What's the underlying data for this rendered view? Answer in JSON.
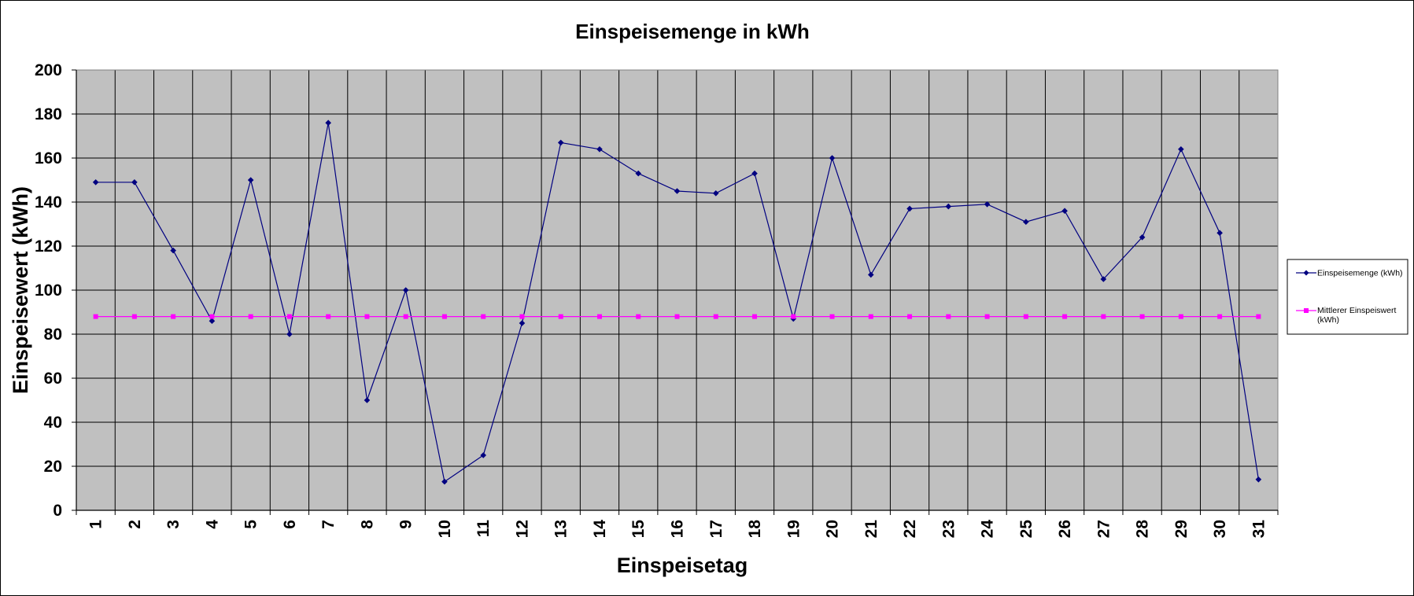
{
  "chart_data": {
    "type": "line",
    "title": "Einspeisemenge in kWh",
    "xlabel": "Einspeisetag",
    "ylabel": "Einspeisewert  (kWh)",
    "categories": [
      "1",
      "2",
      "3",
      "4",
      "5",
      "6",
      "7",
      "8",
      "9",
      "10",
      "11",
      "12",
      "13",
      "14",
      "15",
      "16",
      "17",
      "18",
      "19",
      "20",
      "21",
      "22",
      "23",
      "24",
      "25",
      "26",
      "27",
      "28",
      "29",
      "30",
      "31"
    ],
    "ylim": [
      0,
      200
    ],
    "yticks": [
      "0",
      "20",
      "40",
      "60",
      "80",
      "100",
      "120",
      "140",
      "160",
      "180",
      "200"
    ],
    "grid": true,
    "legend_position": "right",
    "series": [
      {
        "name": "Einspeisemenge (kWh)",
        "color": "#000080",
        "marker": "diamond",
        "values": [
          149,
          149,
          118,
          86,
          150,
          80,
          176,
          50,
          100,
          13,
          25,
          85,
          167,
          164,
          153,
          145,
          144,
          153,
          87,
          160,
          107,
          137,
          138,
          139,
          131,
          136,
          105,
          124,
          164,
          126,
          14
        ]
      },
      {
        "name": "Mittlerer Einspeiswert (kWh)",
        "legend_lines": [
          "Mittlerer Einspeiswert",
          "(kWh)"
        ],
        "color": "#FF00FF",
        "marker": "square",
        "values": [
          88,
          88,
          88,
          88,
          88,
          88,
          88,
          88,
          88,
          88,
          88,
          88,
          88,
          88,
          88,
          88,
          88,
          88,
          88,
          88,
          88,
          88,
          88,
          88,
          88,
          88,
          88,
          88,
          88,
          88,
          88
        ]
      }
    ],
    "plot_background": "#C0C0C0"
  }
}
